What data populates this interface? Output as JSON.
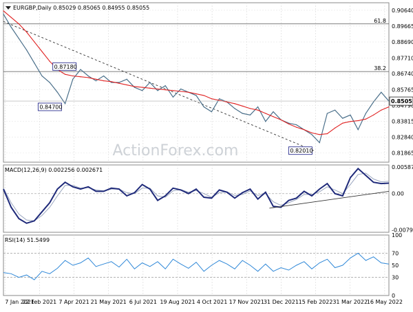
{
  "chart_data": [
    {
      "type": "line",
      "panel": "price",
      "title": "EURGBP,Daily 0.85029 0.85065 0.84955 0.85055",
      "watermark": "ActionForex.com",
      "ylim": [
        0.813,
        0.911
      ],
      "y_ticks": [
        "0.90640",
        "0.89665",
        "0.88690",
        "0.87710",
        "0.86740",
        "0.85765",
        "0.84790",
        "0.83815",
        "0.82840",
        "0.81865"
      ],
      "x_labels": [
        "7 Jan 2021",
        "22 Feb 2021",
        "7 Apr 2021",
        "21 May 2021",
        "6 Jul 2021",
        "19 Aug 2021",
        "4 Oct 2021",
        "17 Nov 2021",
        "31 Dec 2021",
        "15 Feb 2022",
        "31 Mar 2022",
        "16 May 2022"
      ],
      "levels": [
        {
          "label": "61.8",
          "value": 0.898
        },
        {
          "label": "38.2",
          "value": 0.8687
        }
      ],
      "annotations": [
        {
          "label": "0.87180",
          "x": 0.128,
          "y": 0.8718
        },
        {
          "label": "0.84700",
          "x": 0.09,
          "y": 0.847
        },
        {
          "label": "0.82010",
          "x": 0.74,
          "y": 0.8201
        }
      ],
      "current_value": {
        "label": "0.85055",
        "value": 0.85055
      },
      "trendline": {
        "from": [
          0.0,
          0.8995
        ],
        "to": [
          0.805,
          0.8201
        ]
      },
      "series": [
        {
          "color": "#4a6f8a",
          "x": [
            0,
            0.02,
            0.04,
            0.06,
            0.08,
            0.1,
            0.12,
            0.14,
            0.16,
            0.18,
            0.2,
            0.22,
            0.24,
            0.26,
            0.28,
            0.3,
            0.32,
            0.34,
            0.36,
            0.38,
            0.4,
            0.42,
            0.44,
            0.46,
            0.48,
            0.5,
            0.52,
            0.54,
            0.56,
            0.58,
            0.6,
            0.62,
            0.64,
            0.66,
            0.68,
            0.7,
            0.72,
            0.74,
            0.76,
            0.78,
            0.8,
            0.82,
            0.84,
            0.86,
            0.88,
            0.9,
            0.92,
            0.94,
            0.96,
            0.98,
            1.0
          ],
          "values": [
            0.904,
            0.896,
            0.889,
            0.882,
            0.874,
            0.866,
            0.862,
            0.856,
            0.849,
            0.864,
            0.87,
            0.866,
            0.863,
            0.866,
            0.862,
            0.862,
            0.864,
            0.859,
            0.857,
            0.862,
            0.857,
            0.86,
            0.853,
            0.858,
            0.856,
            0.854,
            0.847,
            0.844,
            0.852,
            0.85,
            0.846,
            0.843,
            0.842,
            0.847,
            0.838,
            0.844,
            0.839,
            0.837,
            0.836,
            0.833,
            0.83,
            0.825,
            0.843,
            0.845,
            0.84,
            0.842,
            0.833,
            0.843,
            0.85,
            0.856,
            0.8505
          ]
        },
        {
          "color": "#e02020",
          "x": [
            0,
            0.02,
            0.04,
            0.06,
            0.08,
            0.1,
            0.12,
            0.14,
            0.16,
            0.18,
            0.2,
            0.22,
            0.24,
            0.26,
            0.28,
            0.3,
            0.32,
            0.34,
            0.36,
            0.38,
            0.4,
            0.42,
            0.44,
            0.46,
            0.48,
            0.5,
            0.52,
            0.54,
            0.56,
            0.58,
            0.6,
            0.62,
            0.64,
            0.66,
            0.68,
            0.7,
            0.72,
            0.74,
            0.76,
            0.78,
            0.8,
            0.82,
            0.84,
            0.86,
            0.88,
            0.9,
            0.92,
            0.94,
            0.96,
            0.98,
            1.0
          ],
          "values": [
            0.906,
            0.902,
            0.898,
            0.893,
            0.887,
            0.881,
            0.875,
            0.87,
            0.867,
            0.866,
            0.8655,
            0.865,
            0.864,
            0.863,
            0.8625,
            0.8615,
            0.8605,
            0.8595,
            0.859,
            0.8585,
            0.858,
            0.8575,
            0.857,
            0.8565,
            0.856,
            0.855,
            0.854,
            0.852,
            0.851,
            0.85,
            0.849,
            0.8475,
            0.846,
            0.845,
            0.843,
            0.841,
            0.839,
            0.8365,
            0.8345,
            0.833,
            0.831,
            0.83,
            0.8305,
            0.834,
            0.837,
            0.838,
            0.8385,
            0.8395,
            0.842,
            0.845,
            0.847
          ]
        }
      ]
    },
    {
      "type": "line",
      "panel": "macd",
      "title": "MACD(12,26,9) 0.002256 0.002671",
      "ylim": [
        -0.0085,
        0.0063
      ],
      "y_ticks": [
        "0.005872",
        "0.00",
        "-0.007945"
      ],
      "zero_label": "0.00",
      "trendline": {
        "from": [
          0.69,
          -0.0032
        ],
        "to": [
          1.0,
          0.0005
        ]
      },
      "series": [
        {
          "color": "#1f2a7a",
          "x": [
            0,
            0.02,
            0.04,
            0.06,
            0.08,
            0.1,
            0.12,
            0.14,
            0.16,
            0.18,
            0.2,
            0.22,
            0.24,
            0.26,
            0.28,
            0.3,
            0.32,
            0.34,
            0.36,
            0.38,
            0.4,
            0.42,
            0.44,
            0.46,
            0.48,
            0.5,
            0.52,
            0.54,
            0.56,
            0.58,
            0.6,
            0.62,
            0.64,
            0.66,
            0.68,
            0.7,
            0.72,
            0.74,
            0.76,
            0.78,
            0.8,
            0.82,
            0.84,
            0.86,
            0.88,
            0.9,
            0.92,
            0.94,
            0.96,
            0.98,
            1.0
          ],
          "values": [
            0.001,
            -0.003,
            -0.0055,
            -0.0065,
            -0.006,
            -0.004,
            -0.002,
            0.001,
            0.0025,
            0.0015,
            0.001,
            0.0015,
            0.0005,
            0.0005,
            0.0012,
            0.001,
            -0.0005,
            0.0002,
            0.002,
            0.001,
            -0.0015,
            -0.0005,
            0.0012,
            0.0008,
            0.0,
            0.001,
            -0.0008,
            -0.001,
            0.0008,
            0.0003,
            -0.001,
            0.0002,
            0.001,
            -0.0012,
            0.0003,
            -0.0028,
            -0.003,
            -0.0015,
            -0.001,
            0.0005,
            -0.0005,
            0.001,
            0.0022,
            0.0,
            -0.0005,
            0.0035,
            0.0055,
            0.004,
            0.0025,
            0.0022,
            0.0023
          ]
        },
        {
          "color": "#9aa6bf",
          "x": [
            0,
            0.02,
            0.04,
            0.06,
            0.08,
            0.1,
            0.12,
            0.14,
            0.16,
            0.18,
            0.2,
            0.22,
            0.24,
            0.26,
            0.28,
            0.3,
            0.32,
            0.34,
            0.36,
            0.38,
            0.4,
            0.42,
            0.44,
            0.46,
            0.48,
            0.5,
            0.52,
            0.54,
            0.56,
            0.58,
            0.6,
            0.62,
            0.64,
            0.66,
            0.68,
            0.7,
            0.72,
            0.74,
            0.76,
            0.78,
            0.8,
            0.82,
            0.84,
            0.86,
            0.88,
            0.9,
            0.92,
            0.94,
            0.96,
            0.98,
            1.0
          ],
          "values": [
            0.0012,
            -0.002,
            -0.0045,
            -0.0058,
            -0.006,
            -0.0048,
            -0.003,
            -0.0005,
            0.0018,
            0.0018,
            0.0012,
            0.0013,
            0.0008,
            0.0006,
            0.001,
            0.001,
            0.0002,
            0.0,
            0.0012,
            0.0012,
            -0.0005,
            -0.0008,
            0.0006,
            0.0009,
            0.0003,
            0.0007,
            0.0,
            -0.0008,
            0.0002,
            0.0004,
            -0.0004,
            -0.0002,
            0.0006,
            -0.0004,
            0.0,
            -0.0018,
            -0.0026,
            -0.002,
            -0.0013,
            -0.0002,
            -0.0002,
            0.0004,
            0.0015,
            0.0008,
            0.0,
            0.002,
            0.0042,
            0.0045,
            0.0032,
            0.0026,
            0.0027
          ]
        }
      ]
    },
    {
      "type": "line",
      "panel": "rsi",
      "title": "RSI(14) 51.5499",
      "ylim": [
        0,
        100
      ],
      "y_ticks": [
        "100",
        "70",
        "50",
        "30",
        "0"
      ],
      "levels": [
        {
          "value": 70
        },
        {
          "value": 30
        }
      ],
      "series": [
        {
          "color": "#2f88d8",
          "x": [
            0,
            0.02,
            0.04,
            0.06,
            0.08,
            0.1,
            0.12,
            0.14,
            0.16,
            0.18,
            0.2,
            0.22,
            0.24,
            0.26,
            0.28,
            0.3,
            0.32,
            0.34,
            0.36,
            0.38,
            0.4,
            0.42,
            0.44,
            0.46,
            0.48,
            0.5,
            0.52,
            0.54,
            0.56,
            0.58,
            0.6,
            0.62,
            0.64,
            0.66,
            0.68,
            0.7,
            0.72,
            0.74,
            0.76,
            0.78,
            0.8,
            0.82,
            0.84,
            0.86,
            0.88,
            0.9,
            0.92,
            0.94,
            0.96,
            0.98,
            1.0
          ],
          "values": [
            38,
            36,
            30,
            34,
            26,
            40,
            36,
            45,
            58,
            50,
            54,
            62,
            48,
            52,
            56,
            47,
            60,
            44,
            54,
            48,
            56,
            44,
            60,
            52,
            45,
            55,
            40,
            50,
            58,
            52,
            44,
            58,
            50,
            40,
            52,
            40,
            46,
            42,
            50,
            56,
            44,
            54,
            60,
            46,
            50,
            62,
            70,
            58,
            64,
            54,
            52
          ]
        }
      ]
    }
  ]
}
